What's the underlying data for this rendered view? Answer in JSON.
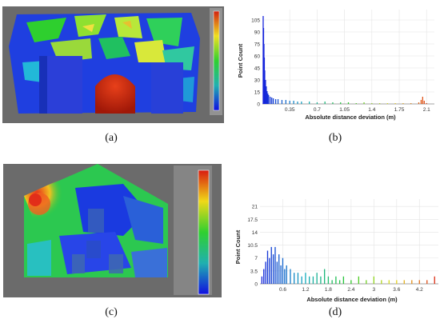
{
  "captions": [
    "(a)",
    "(b)",
    "(c)",
    "(d)"
  ],
  "chart_data": [
    {
      "type": "bar",
      "panel": "b",
      "xlabel": "Absolute distance deviation (m)",
      "ylabel": "Point Count",
      "x_tick_labels": [
        "0.35",
        "0.7",
        "1.05",
        "1.4",
        "1.75",
        "2.1"
      ],
      "x_ticks": [
        0.35,
        0.7,
        1.05,
        1.4,
        1.75,
        2.1
      ],
      "y_tick_labels": [
        "0",
        "15",
        "30",
        "45",
        "60",
        "75",
        "90",
        "105"
      ],
      "y_ticks": [
        0,
        15,
        30,
        45,
        60,
        75,
        90,
        105
      ],
      "xlim": [
        0,
        2.2
      ],
      "ylim": [
        0,
        118
      ],
      "grid": true,
      "bars": {
        "x": [
          0.01,
          0.015,
          0.02,
          0.025,
          0.03,
          0.04,
          0.05,
          0.06,
          0.07,
          0.08,
          0.1,
          0.12,
          0.14,
          0.17,
          0.2,
          0.25,
          0.3,
          0.35,
          0.4,
          0.45,
          0.5,
          0.6,
          0.7,
          0.8,
          0.9,
          1.0,
          1.1,
          1.2,
          1.3,
          1.4,
          1.5,
          1.6,
          1.7,
          1.8,
          1.9,
          2.0,
          2.03,
          2.05,
          2.07,
          2.1
        ],
        "y": [
          110,
          95,
          75,
          58,
          42,
          30,
          22,
          16,
          13,
          11,
          9,
          8,
          7,
          6,
          6,
          5,
          5,
          4,
          4,
          3,
          3,
          3,
          2,
          3,
          2,
          2,
          2,
          1,
          2,
          1,
          1,
          1,
          1,
          1,
          1,
          2,
          5,
          9,
          4,
          1
        ]
      }
    },
    {
      "type": "bar",
      "panel": "d",
      "xlabel": "Absolute distance deviation (m)",
      "ylabel": "Point Count",
      "x_tick_labels": [
        "0.6",
        "1.2",
        "1.8",
        "2.4",
        "3",
        "3.6",
        "4.2"
      ],
      "x_ticks": [
        0.6,
        1.2,
        1.8,
        2.4,
        3.0,
        3.6,
        4.2
      ],
      "y_tick_labels": [
        "0",
        "3.5",
        "7",
        "10.5",
        "14",
        "17.5",
        "21"
      ],
      "y_ticks": [
        0,
        3.5,
        7,
        10.5,
        14,
        17.5,
        21
      ],
      "xlim": [
        0,
        4.7
      ],
      "ylim": [
        0,
        23
      ],
      "grid": true,
      "bars": {
        "x": [
          0.05,
          0.1,
          0.15,
          0.2,
          0.25,
          0.3,
          0.35,
          0.4,
          0.45,
          0.5,
          0.55,
          0.6,
          0.65,
          0.7,
          0.8,
          0.9,
          1.0,
          1.1,
          1.2,
          1.3,
          1.4,
          1.5,
          1.6,
          1.7,
          1.8,
          1.9,
          2.0,
          2.1,
          2.2,
          2.4,
          2.6,
          2.8,
          3.0,
          3.2,
          3.4,
          3.6,
          3.8,
          4.0,
          4.2,
          4.4,
          4.6
        ],
        "y": [
          2,
          4,
          6,
          9,
          7,
          10,
          8,
          10,
          6,
          8,
          5,
          7,
          4,
          5,
          4,
          3,
          3,
          2,
          3,
          2,
          2,
          3,
          2,
          4,
          2,
          1,
          2,
          1,
          2,
          1,
          2,
          1,
          2,
          1,
          1,
          1,
          1,
          1,
          1,
          1,
          2
        ]
      }
    }
  ]
}
